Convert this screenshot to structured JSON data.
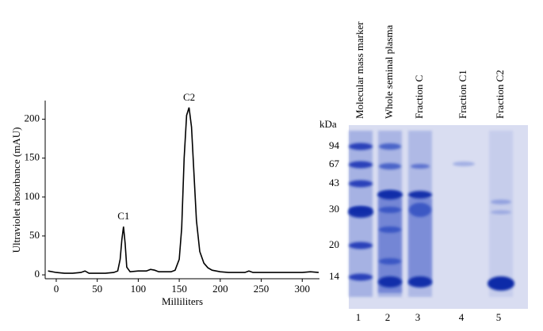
{
  "chart_data": {
    "type": "line",
    "xlabel": "Milliliters",
    "ylabel": "Ultraviolet absorbance  (mAU)",
    "annotations": [
      "C1",
      "C2"
    ],
    "x": [
      -10,
      0,
      10,
      20,
      30,
      35,
      40,
      50,
      60,
      70,
      75,
      78,
      80,
      82,
      84,
      86,
      90,
      100,
      110,
      115,
      120,
      125,
      130,
      140,
      145,
      150,
      153,
      156,
      159,
      162,
      165,
      168,
      171,
      175,
      180,
      185,
      190,
      200,
      210,
      220,
      230,
      235,
      240,
      250,
      260,
      270,
      280,
      290,
      300,
      310,
      320
    ],
    "values": [
      5,
      3,
      2,
      2,
      3,
      5,
      2,
      2,
      2,
      3,
      5,
      20,
      45,
      62,
      40,
      10,
      4,
      5,
      5,
      7,
      6,
      4,
      4,
      4,
      6,
      20,
      60,
      150,
      205,
      215,
      190,
      130,
      70,
      30,
      15,
      9,
      6,
      4,
      3,
      3,
      3,
      5,
      3,
      3,
      3,
      3,
      3,
      3,
      3,
      4,
      3
    ],
    "color": "#000000",
    "xlim": [
      -13.5,
      321
    ],
    "xticks": [
      0,
      50,
      100,
      150,
      200,
      250,
      300
    ],
    "ylim": [
      -5,
      224
    ],
    "yticks": [
      0,
      50,
      100,
      150,
      200
    ]
  },
  "gel": {
    "unit_label": "kDa",
    "markers": [
      "94",
      "67",
      "43",
      "30",
      "20",
      "14"
    ],
    "lanes": [
      {
        "name": "Molecular mass marker",
        "number": "1"
      },
      {
        "name": "Whole seminal plasma",
        "number": "2"
      },
      {
        "name": "Fraction C",
        "number": "3"
      },
      {
        "name": "Fraction C1",
        "number": "4"
      },
      {
        "name": "Fraction C2",
        "number": "5"
      }
    ]
  }
}
